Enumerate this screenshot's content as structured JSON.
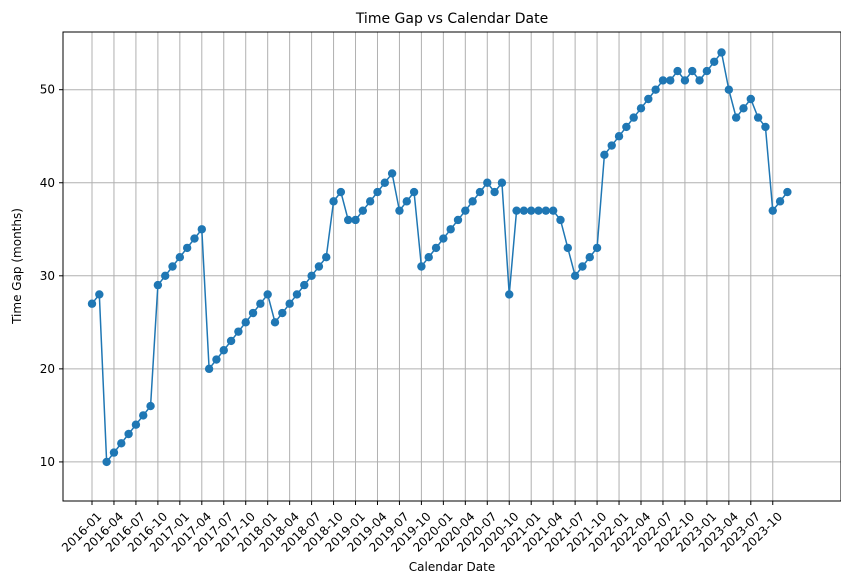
{
  "chart_data": {
    "type": "line",
    "title": "Time Gap vs Calendar Date",
    "xlabel": "Calendar Date",
    "ylabel": "Time Gap (months)",
    "grid": true,
    "line_color": "#1f77b4",
    "marker": "circle",
    "x_tick_labels": [
      "2016-01",
      "2016-04",
      "2016-07",
      "2016-10",
      "2017-01",
      "2017-04",
      "2017-07",
      "2017-10",
      "2018-01",
      "2018-04",
      "2018-07",
      "2018-10",
      "2019-01",
      "2019-04",
      "2019-07",
      "2019-10",
      "2020-01",
      "2020-04",
      "2020-07",
      "2020-10",
      "2021-01",
      "2021-04",
      "2021-07",
      "2021-10",
      "2022-01",
      "2022-04",
      "2022-07",
      "2022-10",
      "2023-01",
      "2023-04",
      "2023-07",
      "2023-10"
    ],
    "y_ticks": [
      10,
      20,
      30,
      40,
      50
    ],
    "ylim": [
      5.8,
      56.2
    ],
    "series": [
      {
        "x": [
          "2016-01",
          "2016-02",
          "2016-03",
          "2016-04",
          "2016-05",
          "2016-06",
          "2016-07",
          "2016-08",
          "2016-09",
          "2016-10",
          "2016-11",
          "2016-12",
          "2017-01",
          "2017-02",
          "2017-03",
          "2017-04",
          "2017-05",
          "2017-06",
          "2017-07",
          "2017-08",
          "2017-09",
          "2017-10",
          "2017-11",
          "2017-12",
          "2018-01",
          "2018-02",
          "2018-03",
          "2018-04",
          "2018-05",
          "2018-06",
          "2018-07",
          "2018-08",
          "2018-09",
          "2018-10",
          "2018-11",
          "2018-12",
          "2019-01",
          "2019-02",
          "2019-03",
          "2019-04",
          "2019-05",
          "2019-06",
          "2019-07",
          "2019-08",
          "2019-09",
          "2019-10",
          "2019-11",
          "2019-12",
          "2020-01",
          "2020-02",
          "2020-03",
          "2020-04",
          "2020-05",
          "2020-06",
          "2020-07",
          "2020-08",
          "2020-09",
          "2020-10",
          "2020-11",
          "2020-12",
          "2021-01",
          "2021-02",
          "2021-03",
          "2021-04",
          "2021-05",
          "2021-06",
          "2021-07",
          "2021-08",
          "2021-09",
          "2021-10",
          "2021-11",
          "2021-12",
          "2022-01",
          "2022-02",
          "2022-03",
          "2022-04",
          "2022-05",
          "2022-06",
          "2022-07",
          "2022-08",
          "2022-09",
          "2022-10",
          "2022-11",
          "2022-12",
          "2023-01",
          "2023-02",
          "2023-03",
          "2023-04",
          "2023-05",
          "2023-06",
          "2023-07",
          "2023-08",
          "2023-09",
          "2023-10",
          "2023-11",
          "2023-12"
        ],
        "y": [
          27,
          28,
          10,
          11,
          12,
          13,
          14,
          15,
          16,
          29,
          30,
          31,
          32,
          33,
          34,
          35,
          20,
          21,
          22,
          23,
          24,
          25,
          26,
          27,
          28,
          25,
          26,
          27,
          28,
          29,
          30,
          31,
          32,
          38,
          39,
          36,
          36,
          37,
          38,
          39,
          40,
          41,
          37,
          38,
          39,
          31,
          32,
          33,
          34,
          35,
          36,
          37,
          38,
          39,
          40,
          39,
          40,
          28,
          37,
          37,
          37,
          37,
          37,
          37,
          36,
          33,
          30,
          31,
          32,
          33,
          43,
          44,
          45,
          46,
          47,
          48,
          49,
          50,
          51,
          51,
          52,
          51,
          52,
          51,
          52,
          53,
          54,
          50,
          47,
          48,
          49,
          47,
          46,
          37,
          38,
          39
        ]
      }
    ]
  }
}
